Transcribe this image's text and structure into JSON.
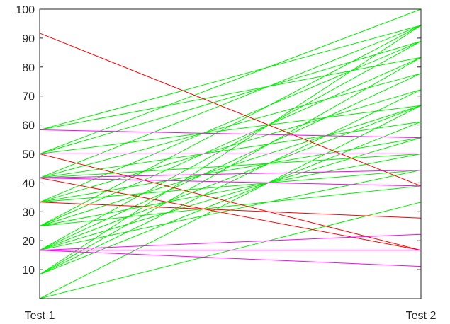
{
  "chart_data": {
    "type": "line",
    "chart_kind": "parallel-coordinates slope chart",
    "categories": [
      "Test 1",
      "Test 2"
    ],
    "ylim": [
      0,
      100
    ],
    "yticks": [
      10,
      20,
      30,
      40,
      50,
      60,
      70,
      80,
      90,
      100
    ],
    "grid": false,
    "colors": {
      "improved": "#00ee00",
      "declined": "#ff0000",
      "similar": "#ff00ff"
    },
    "series": [
      {
        "group": "declined",
        "values": [
          91.7,
          38.9
        ]
      },
      {
        "group": "declined",
        "values": [
          50,
          16.7
        ]
      },
      {
        "group": "declined",
        "values": [
          41.7,
          16.7
        ]
      },
      {
        "group": "declined",
        "values": [
          33.3,
          27.8
        ]
      },
      {
        "group": "similar",
        "values": [
          58.3,
          55.6
        ]
      },
      {
        "group": "similar",
        "values": [
          50,
          50
        ]
      },
      {
        "group": "similar",
        "values": [
          41.7,
          44.4
        ]
      },
      {
        "group": "similar",
        "values": [
          41.7,
          38.9
        ]
      },
      {
        "group": "similar",
        "values": [
          16.7,
          22.2
        ]
      },
      {
        "group": "similar",
        "values": [
          16.7,
          16.7
        ]
      },
      {
        "group": "similar",
        "values": [
          16.7,
          11.1
        ]
      },
      {
        "group": "improved",
        "values": [
          58.3,
          94.4
        ]
      },
      {
        "group": "improved",
        "values": [
          58.3,
          83.3
        ]
      },
      {
        "group": "improved",
        "values": [
          50,
          100
        ]
      },
      {
        "group": "improved",
        "values": [
          50,
          88.9
        ]
      },
      {
        "group": "improved",
        "values": [
          50,
          66.7
        ]
      },
      {
        "group": "improved",
        "values": [
          41.7,
          94.4
        ]
      },
      {
        "group": "improved",
        "values": [
          41.7,
          77.8
        ]
      },
      {
        "group": "improved",
        "values": [
          41.7,
          61.1
        ]
      },
      {
        "group": "improved",
        "values": [
          41.7,
          50
        ]
      },
      {
        "group": "improved",
        "values": [
          33.3,
          88.9
        ]
      },
      {
        "group": "improved",
        "values": [
          33.3,
          72.2
        ]
      },
      {
        "group": "improved",
        "values": [
          33.3,
          55.6
        ]
      },
      {
        "group": "improved",
        "values": [
          33.3,
          44.4
        ]
      },
      {
        "group": "improved",
        "values": [
          25,
          94.4
        ]
      },
      {
        "group": "improved",
        "values": [
          25,
          83.3
        ]
      },
      {
        "group": "improved",
        "values": [
          25,
          66.7
        ]
      },
      {
        "group": "improved",
        "values": [
          25,
          50
        ]
      },
      {
        "group": "improved",
        "values": [
          25,
          38.9
        ]
      },
      {
        "group": "improved",
        "values": [
          16.7,
          88.9
        ]
      },
      {
        "group": "improved",
        "values": [
          16.7,
          77.8
        ]
      },
      {
        "group": "improved",
        "values": [
          16.7,
          66.7
        ]
      },
      {
        "group": "improved",
        "values": [
          16.7,
          55.6
        ]
      },
      {
        "group": "improved",
        "values": [
          16.7,
          44.4
        ]
      },
      {
        "group": "improved",
        "values": [
          8.3,
          94.4
        ]
      },
      {
        "group": "improved",
        "values": [
          8.3,
          83.3
        ]
      },
      {
        "group": "improved",
        "values": [
          8.3,
          72.2
        ]
      },
      {
        "group": "improved",
        "values": [
          8.3,
          61.1
        ]
      },
      {
        "group": "improved",
        "values": [
          0,
          66.7
        ]
      },
      {
        "group": "improved",
        "values": [
          0,
          33.3
        ]
      }
    ]
  }
}
